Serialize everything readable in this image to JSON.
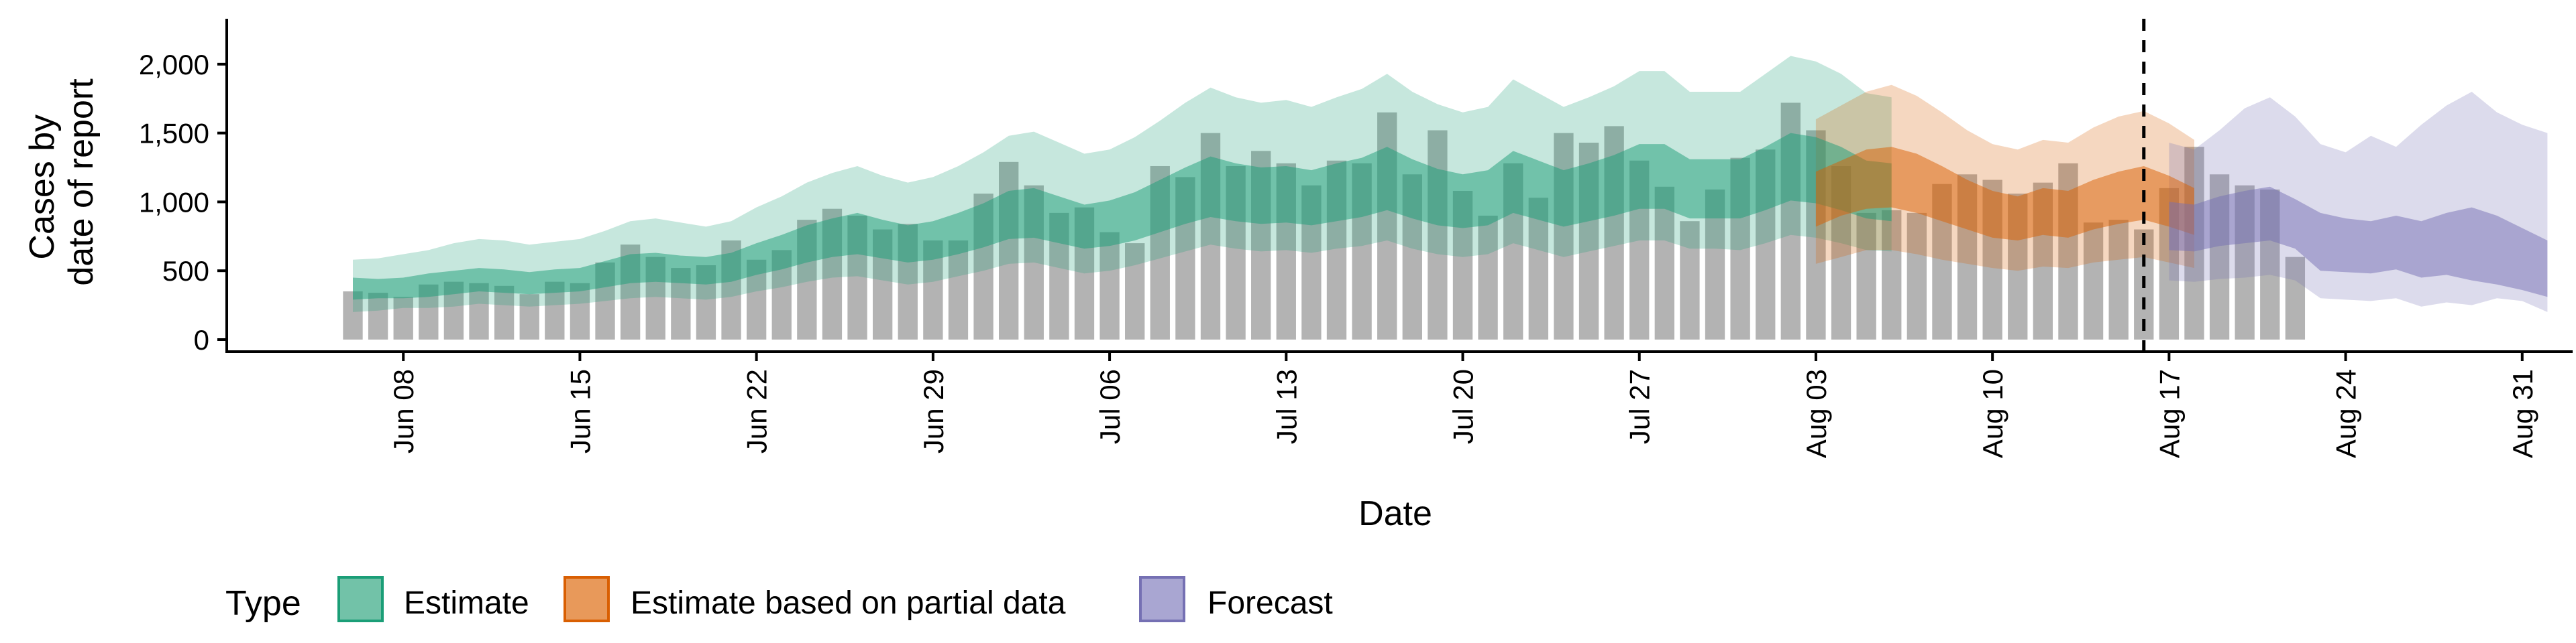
{
  "chart_data": {
    "type": "area",
    "xlabel": "Date",
    "ylabel": [
      "Cases by",
      "date of report"
    ],
    "yticks": [
      0,
      500,
      1000,
      1500,
      2000
    ],
    "ytick_labels": [
      "0",
      "500",
      "1,000",
      "1,500",
      "2,000"
    ],
    "ylim": [
      0,
      2330
    ],
    "xlim": [
      "2020-06-01",
      "2020-09-02"
    ],
    "xticks": [
      "2020-06-08",
      "2020-06-15",
      "2020-06-22",
      "2020-06-29",
      "2020-07-06",
      "2020-07-13",
      "2020-07-20",
      "2020-07-27",
      "2020-08-03",
      "2020-08-10",
      "2020-08-17",
      "2020-08-24",
      "2020-08-31"
    ],
    "xtick_labels": [
      "Jun 08",
      "Jun 15",
      "Jun 22",
      "Jun 29",
      "Jul 06",
      "Jul 13",
      "Jul 20",
      "Jul 27",
      "Aug 03",
      "Aug 10",
      "Aug 17",
      "Aug 24",
      "Aug 31"
    ],
    "forecast_line_date": "2020-08-16",
    "legend": {
      "title": "Type",
      "position": "bottom",
      "items": [
        {
          "label": "Estimate",
          "color": "#1b9e77"
        },
        {
          "label": "Estimate based on partial data",
          "color": "#d95f02"
        },
        {
          "label": "Forecast",
          "color": "#7570b3"
        }
      ]
    },
    "colors": {
      "bars": "#b3b3b3",
      "estimate": "#1b9e77",
      "partial": "#d95f02",
      "forecast": "#7570b3"
    },
    "bars": {
      "start": "2020-06-06",
      "values": [
        350,
        340,
        310,
        400,
        420,
        410,
        390,
        330,
        420,
        410,
        560,
        690,
        600,
        520,
        540,
        720,
        580,
        650,
        870,
        950,
        900,
        800,
        840,
        720,
        720,
        1060,
        1290,
        1120,
        920,
        960,
        780,
        700,
        1260,
        1180,
        1500,
        1260,
        1370,
        1280,
        1120,
        1300,
        1280,
        1650,
        1200,
        1520,
        1080,
        900,
        1280,
        1030,
        1500,
        1430,
        1550,
        1300,
        1110,
        860,
        1090,
        1320,
        1380,
        1720,
        1520,
        1260,
        920,
        940,
        920,
        1130,
        1200,
        1160,
        1060,
        1140,
        1280,
        850,
        870,
        800,
        1100,
        1400,
        1200,
        1120,
        1090,
        600
      ]
    },
    "series": [
      {
        "name": "Estimate",
        "start": "2020-06-06",
        "lower90": [
          200,
          210,
          230,
          230,
          240,
          260,
          250,
          240,
          250,
          260,
          280,
          300,
          310,
          300,
          290,
          310,
          350,
          380,
          420,
          450,
          460,
          430,
          400,
          420,
          460,
          500,
          550,
          560,
          520,
          480,
          500,
          540,
          590,
          640,
          690,
          660,
          640,
          650,
          630,
          660,
          680,
          720,
          660,
          620,
          600,
          620,
          700,
          650,
          600,
          640,
          680,
          720,
          720,
          660,
          660,
          650,
          700,
          760,
          740,
          700,
          650,
          640
        ],
        "lower50": [
          290,
          300,
          300,
          310,
          330,
          350,
          340,
          330,
          340,
          350,
          380,
          410,
          420,
          410,
          400,
          420,
          470,
          510,
          560,
          600,
          620,
          590,
          560,
          580,
          620,
          670,
          730,
          740,
          700,
          660,
          680,
          720,
          780,
          840,
          890,
          860,
          840,
          850,
          830,
          860,
          890,
          940,
          880,
          830,
          810,
          830,
          920,
          870,
          820,
          860,
          900,
          950,
          950,
          880,
          880,
          880,
          940,
          1010,
          990,
          940,
          880,
          860
        ],
        "upper50": [
          450,
          440,
          450,
          480,
          500,
          520,
          510,
          490,
          510,
          520,
          570,
          620,
          630,
          610,
          600,
          630,
          700,
          760,
          830,
          880,
          920,
          870,
          830,
          860,
          920,
          990,
          1080,
          1100,
          1040,
          980,
          1010,
          1070,
          1160,
          1250,
          1330,
          1280,
          1250,
          1260,
          1230,
          1280,
          1320,
          1400,
          1310,
          1240,
          1200,
          1230,
          1370,
          1300,
          1230,
          1280,
          1340,
          1420,
          1420,
          1310,
          1310,
          1310,
          1400,
          1500,
          1470,
          1400,
          1300,
          1280
        ],
        "upper90": [
          580,
          590,
          620,
          650,
          700,
          730,
          720,
          690,
          710,
          730,
          790,
          860,
          880,
          850,
          820,
          860,
          960,
          1040,
          1140,
          1210,
          1260,
          1190,
          1140,
          1180,
          1260,
          1360,
          1480,
          1510,
          1430,
          1350,
          1380,
          1470,
          1590,
          1720,
          1830,
          1760,
          1720,
          1740,
          1690,
          1760,
          1820,
          1930,
          1800,
          1710,
          1650,
          1690,
          1890,
          1790,
          1690,
          1760,
          1840,
          1950,
          1950,
          1800,
          1800,
          1800,
          1930,
          2060,
          2020,
          1930,
          1790,
          1760
        ]
      },
      {
        "name": "Estimate based on partial data",
        "start": "2020-08-03",
        "lower90": [
          550,
          600,
          650,
          650,
          620,
          580,
          550,
          520,
          500,
          530,
          520,
          560,
          580,
          600,
          560,
          520
        ],
        "lower50": [
          820,
          900,
          950,
          960,
          920,
          860,
          800,
          740,
          720,
          760,
          740,
          800,
          840,
          870,
          820,
          760
        ],
        "upper50": [
          1220,
          1300,
          1380,
          1400,
          1350,
          1260,
          1160,
          1080,
          1040,
          1100,
          1080,
          1160,
          1220,
          1260,
          1190,
          1100
        ],
        "upper90": [
          1600,
          1700,
          1800,
          1850,
          1770,
          1650,
          1520,
          1420,
          1380,
          1450,
          1430,
          1540,
          1620,
          1660,
          1570,
          1450
        ]
      },
      {
        "name": "Forecast",
        "start": "2020-08-17",
        "lower90": [
          430,
          420,
          440,
          450,
          470,
          430,
          300,
          290,
          280,
          300,
          240,
          270,
          250,
          300,
          280,
          200
        ],
        "lower50": [
          650,
          640,
          680,
          700,
          720,
          660,
          500,
          490,
          480,
          510,
          450,
          470,
          430,
          400,
          360,
          310
        ],
        "upper50": [
          1000,
          980,
          1040,
          1080,
          1110,
          1020,
          920,
          880,
          860,
          900,
          860,
          920,
          960,
          900,
          810,
          720
        ],
        "upper90": [
          1430,
          1380,
          1520,
          1680,
          1760,
          1620,
          1420,
          1360,
          1480,
          1400,
          1560,
          1700,
          1800,
          1650,
          1560,
          1500
        ]
      }
    ]
  }
}
